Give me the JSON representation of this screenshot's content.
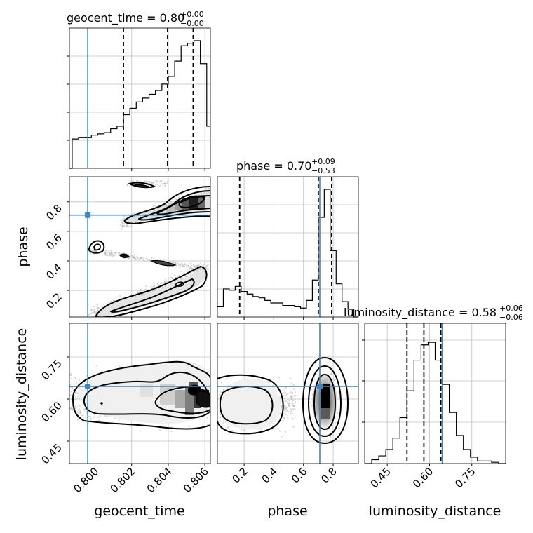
{
  "chart_data": {
    "type": "corner",
    "parameters": [
      "geocent_time",
      "phase",
      "luminosity_distance"
    ],
    "colors": {
      "truth": "#4682b4",
      "hist": "#000000",
      "grid": "#c0c0c0",
      "scatter": "#b0b0b0"
    },
    "titles": [
      {
        "param": "geocent_time",
        "text": "geocent_time = 0.80",
        "sup": "+0.00",
        "sub": "−0.00"
      },
      {
        "param": "phase",
        "text": "phase = 0.70",
        "sup": "+0.09",
        "sub": "−0.53"
      },
      {
        "param": "luminosity_distance",
        "text": "luminosity_distance = 0.58",
        "sup": "+0.06",
        "sub": "−0.06"
      }
    ],
    "axes": {
      "geocent_time": {
        "range": [
          0.7986,
          0.8063
        ],
        "ticks": [
          0.8,
          0.802,
          0.804,
          0.806
        ],
        "tick_labels": [
          "0.800",
          "0.802",
          "0.804",
          "0.806"
        ],
        "label": "geocent_time"
      },
      "phase": {
        "range": [
          0.02,
          0.97
        ],
        "ticks": [
          0.2,
          0.4,
          0.6,
          0.8
        ],
        "tick_labels": [
          "0.2",
          "0.4",
          "0.6",
          "0.8"
        ],
        "label": "phase"
      },
      "luminosity_distance": {
        "range": [
          0.37,
          0.87
        ],
        "ticks": [
          0.45,
          0.6,
          0.75
        ],
        "tick_labels": [
          "0.45",
          "0.60",
          "0.75"
        ],
        "label": "luminosity_distance"
      }
    },
    "truths": {
      "geocent_time": 0.7996,
      "phase": 0.71,
      "luminosity_distance": 0.645
    },
    "quantiles": {
      "geocent_time": [
        0.80155,
        0.80396,
        0.80536
      ],
      "phase": [
        0.17,
        0.7,
        0.79
      ],
      "luminosity_distance": [
        0.52,
        0.58,
        0.64
      ]
    },
    "histograms": {
      "geocent_time": {
        "edges": [
          0.7986,
          0.79875,
          0.7991,
          0.79945,
          0.7998,
          0.80015,
          0.8005,
          0.80085,
          0.8012,
          0.80155,
          0.8019,
          0.80225,
          0.8026,
          0.80295,
          0.8033,
          0.80365,
          0.804,
          0.80435,
          0.8047,
          0.80505,
          0.8054,
          0.80575,
          0.8061,
          0.8063
        ],
        "counts": [
          0,
          0.23,
          0.24,
          0.24,
          0.26,
          0.27,
          0.28,
          0.31,
          0.33,
          0.42,
          0.47,
          0.52,
          0.55,
          0.58,
          0.61,
          0.66,
          0.72,
          0.84,
          0.96,
          0.98,
          1.0,
          0.82,
          0.33
        ]
      },
      "phase": {
        "edges": [
          0.02,
          0.06,
          0.1,
          0.14,
          0.18,
          0.22,
          0.26,
          0.3,
          0.34,
          0.38,
          0.42,
          0.46,
          0.5,
          0.54,
          0.58,
          0.62,
          0.66,
          0.7,
          0.74,
          0.78,
          0.82,
          0.86,
          0.9,
          0.94,
          0.97
        ],
        "counts": [
          0.08,
          0.22,
          0.21,
          0.24,
          0.2,
          0.18,
          0.16,
          0.15,
          0.13,
          0.11,
          0.11,
          0.09,
          0.09,
          0.08,
          0.07,
          0.13,
          0.29,
          0.78,
          1.0,
          0.52,
          0.26,
          0.12,
          0.06,
          0.0
        ]
      },
      "luminosity_distance": {
        "edges": [
          0.37,
          0.395,
          0.42,
          0.445,
          0.47,
          0.495,
          0.52,
          0.545,
          0.57,
          0.595,
          0.62,
          0.645,
          0.67,
          0.695,
          0.72,
          0.745,
          0.77,
          0.795,
          0.82,
          0.845,
          0.87
        ],
        "counts": [
          0.0,
          0.03,
          0.06,
          0.11,
          0.2,
          0.36,
          0.57,
          0.81,
          0.93,
          0.95,
          0.81,
          0.62,
          0.4,
          0.22,
          0.11,
          0.05,
          0.02,
          0.02,
          0.01,
          0.0
        ]
      }
    }
  }
}
